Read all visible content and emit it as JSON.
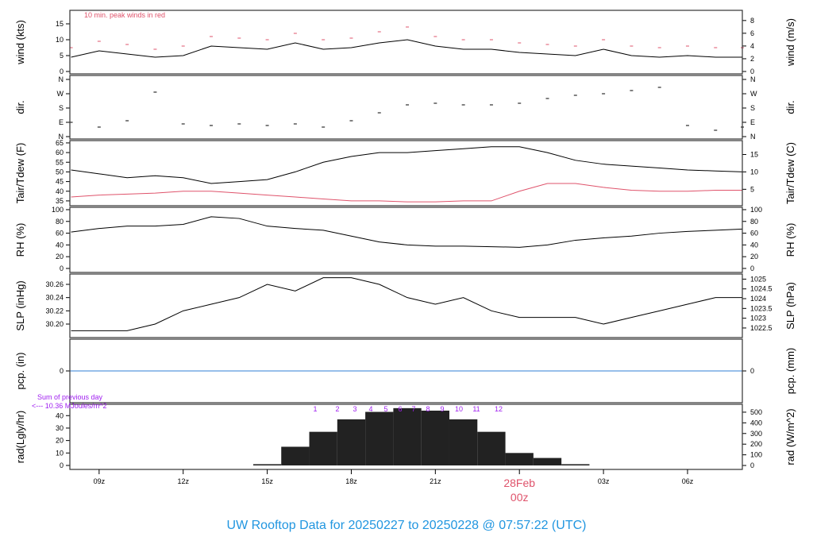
{
  "title": "UW Rooftop Data for 20250227  to  20250228 @ 07:57:22  (UTC)",
  "colors": {
    "title": "#2196e0",
    "peak": "#df536b",
    "dewpoint": "#df536b",
    "date": "#df536b",
    "annot": "#a020f0",
    "pcp": "#2f7fd6",
    "line": "#000000"
  },
  "chart_data": {
    "type": "line",
    "x_range": [
      "2025-02-27T07:57:22",
      "2025-02-28T07:57:22"
    ],
    "x_ticks": [
      {
        "t": "2025-02-27T09:00",
        "label": "09z"
      },
      {
        "t": "2025-02-27T12:00",
        "label": "12z"
      },
      {
        "t": "2025-02-27T15:00",
        "label": "15z"
      },
      {
        "t": "2025-02-27T18:00",
        "label": "18z"
      },
      {
        "t": "2025-02-27T21:00",
        "label": "21z"
      },
      {
        "t": "2025-02-28T00:00",
        "label": ""
      },
      {
        "t": "2025-02-28T03:00",
        "label": "03z"
      },
      {
        "t": "2025-02-28T06:00",
        "label": "06z"
      }
    ],
    "date_marker": {
      "t": "2025-02-28T00:00",
      "date": "28Feb",
      "hour": "00z"
    },
    "times": [
      "2025-02-27T08:00",
      "2025-02-27T09:00",
      "2025-02-27T10:00",
      "2025-02-27T11:00",
      "2025-02-27T12:00",
      "2025-02-27T13:00",
      "2025-02-27T14:00",
      "2025-02-27T15:00",
      "2025-02-27T16:00",
      "2025-02-27T17:00",
      "2025-02-27T18:00",
      "2025-02-27T19:00",
      "2025-02-27T20:00",
      "2025-02-27T21:00",
      "2025-02-27T22:00",
      "2025-02-27T23:00",
      "2025-02-28T00:00",
      "2025-02-28T01:00",
      "2025-02-28T02:00",
      "2025-02-28T03:00",
      "2025-02-28T04:00",
      "2025-02-28T05:00",
      "2025-02-28T06:00",
      "2025-02-28T07:00",
      "2025-02-28T08:00"
    ],
    "panels": [
      {
        "id": "wind",
        "ylabel": "wind (kts)",
        "ylabel_right": "wind (m/s)",
        "ylim": [
          -0.75,
          19.25
        ],
        "ylim_right": [
          -0.375,
          9.6
        ],
        "yticks": [
          0,
          5,
          10,
          15
        ],
        "yticks_right": [
          0,
          2,
          4,
          6,
          8
        ],
        "annotation": "10 min. peak winds in red",
        "series": [
          {
            "kind": "line",
            "values": [
              4.5,
              6.5,
              5.5,
              4.5,
              5,
              8,
              7.5,
              7,
              9,
              7,
              7.5,
              9,
              10,
              8,
              7,
              7,
              6,
              5.5,
              5,
              7,
              5,
              4.5,
              5,
              4.5,
              4.5
            ]
          },
          {
            "kind": "peak",
            "values": [
              7.5,
              9.5,
              8.5,
              7,
              8,
              11,
              10.5,
              10,
              12,
              10,
              10.5,
              12.5,
              14,
              11,
              10,
              10,
              9,
              8.5,
              8,
              10,
              8,
              7.5,
              8,
              7.5,
              7.5
            ]
          }
        ]
      },
      {
        "id": "dir",
        "ylabel": "dir.",
        "ylabel_right": "dir.",
        "ylim": [
          -15,
          385
        ],
        "ylim_right": [
          -15,
          385
        ],
        "yticks": [
          {
            "v": 0,
            "l": "N"
          },
          {
            "v": 90,
            "l": "E"
          },
          {
            "v": 180,
            "l": "S"
          },
          {
            "v": 270,
            "l": "W"
          },
          {
            "v": 360,
            "l": "N"
          }
        ],
        "series": [
          {
            "kind": "dash",
            "values": [
              90,
              60,
              100,
              280,
              80,
              70,
              80,
              70,
              80,
              60,
              100,
              150,
              200,
              210,
              200,
              200,
              210,
              240,
              260,
              270,
              290,
              310,
              70,
              40,
              60
            ]
          }
        ]
      },
      {
        "id": "temp",
        "ylabel": "Tair/Tdew (F)",
        "ylabel_right": "Tair/Tdew (C)",
        "ylim": [
          32.5,
          66.2
        ],
        "ylim_right": [
          0.28,
          19.0
        ],
        "yticks": [
          35,
          40,
          45,
          50,
          55,
          60,
          65
        ],
        "yticks_right": [
          5,
          10,
          15
        ],
        "series": [
          {
            "kind": "line",
            "name": "Tair",
            "values": [
              51,
              49,
              47,
              48,
              47,
              44,
              45,
              46,
              50,
              55,
              58,
              60,
              60,
              61,
              62,
              63,
              63,
              60,
              56,
              54,
              53,
              52,
              51,
              50.5,
              50
            ]
          },
          {
            "kind": "dew",
            "name": "Tdew",
            "values": [
              37,
              38,
              38.5,
              39,
              40,
              40,
              39,
              38,
              37,
              36,
              35,
              35,
              34.5,
              34.5,
              35,
              35,
              40,
              44,
              44,
              42,
              40.5,
              40,
              40,
              40.5,
              40.5
            ]
          }
        ]
      },
      {
        "id": "rh",
        "ylabel": "RH (%)",
        "ylabel_right": "RH (%)",
        "ylim": [
          -6.8,
          104
        ],
        "ylim_right": [
          -6.8,
          104
        ],
        "yticks": [
          0,
          20,
          40,
          60,
          80,
          100
        ],
        "yticks_right": [
          0,
          20,
          40,
          60,
          80,
          100
        ],
        "series": [
          {
            "kind": "line",
            "values": [
              62,
              68,
              72,
              72,
              75,
              88,
              85,
              72,
              68,
              65,
              55,
              45,
              40,
              38,
              38,
              37,
              36,
              40,
              48,
              52,
              55,
              60,
              63,
              65,
              67
            ]
          }
        ]
      },
      {
        "id": "slp",
        "ylabel": "SLP (inHg)",
        "ylabel_right": "SLP (hPa)",
        "ylim": [
          30.1796,
          30.2756
        ],
        "ylim_right": [
          1022.01,
          1025.26
        ],
        "yticks": [
          "30.20",
          "30.22",
          "30.24",
          "30.26"
        ],
        "yticks_right": [
          "1022.5",
          "1023",
          "1023.5",
          "1024",
          "1024.5",
          "1025"
        ],
        "series": [
          {
            "kind": "line",
            "values": [
              30.19,
              30.19,
              30.19,
              30.2,
              30.22,
              30.23,
              30.24,
              30.26,
              30.25,
              30.27,
              30.27,
              30.26,
              30.24,
              30.23,
              30.24,
              30.22,
              30.21,
              30.21,
              30.21,
              30.2,
              30.21,
              30.22,
              30.23,
              30.24,
              30.24
            ]
          }
        ]
      },
      {
        "id": "pcp",
        "ylabel": "pcp. (in)",
        "ylabel_right": "pcp. (mm)",
        "ylim": [
          -1,
          1
        ],
        "ylim_right": [
          -25.4,
          25.4
        ],
        "yticks": [
          0
        ],
        "yticks_right": [
          0
        ],
        "series": [
          {
            "kind": "pcp",
            "values": [
              0,
              0,
              0,
              0,
              0,
              0,
              0,
              0,
              0,
              0,
              0,
              0,
              0,
              0,
              0,
              0,
              0,
              0,
              0,
              0,
              0,
              0,
              0,
              0,
              0
            ]
          }
        ]
      },
      {
        "id": "rad",
        "ylabel": "rad(Lgly/hr)",
        "ylabel_right": "rad (W/m^2)",
        "ylim": [
          -3.2,
          49.1
        ],
        "ylim_right": [
          -37,
          574
        ],
        "yticks": [
          0,
          10,
          20,
          30,
          40
        ],
        "yticks_right": [
          0,
          100,
          200,
          300,
          400,
          500
        ],
        "sum_text": [
          "Sum of previous day",
          "<--- 10.36 MJoules/m^2"
        ],
        "hour_marks": [
          "1",
          "2",
          "3",
          "4",
          "5",
          "6",
          "7",
          "8",
          "9",
          "10",
          "11",
          "12"
        ],
        "series": [
          {
            "kind": "bars",
            "values": [
              0,
              0,
              0,
              0,
              0,
              0,
              0,
              1,
              15,
              27,
              37,
              43,
              46,
              44,
              37,
              27,
              10,
              6,
              1,
              0,
              0,
              0,
              0,
              0,
              0
            ]
          }
        ]
      }
    ]
  }
}
